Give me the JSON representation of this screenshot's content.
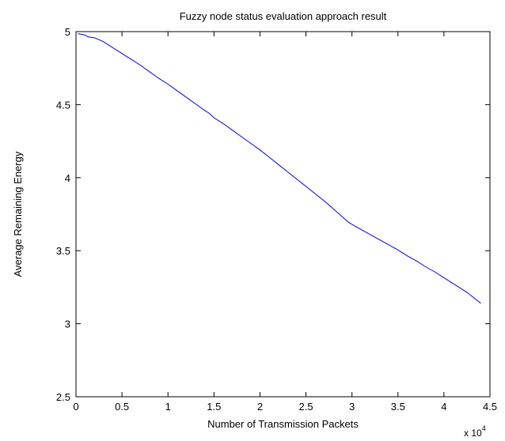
{
  "chart_data": {
    "type": "line",
    "title": "Fuzzy node status evaluation approach result",
    "xlabel": "Number of Transmission Packets",
    "ylabel": "Average Remaining Energy",
    "x_multiplier": {
      "base": "x 10",
      "exponent": "4"
    },
    "xlim": [
      0,
      4.5
    ],
    "ylim": [
      2.5,
      5
    ],
    "xticks": [
      0,
      0.5,
      1,
      1.5,
      2,
      2.5,
      3,
      3.5,
      4,
      4.5
    ],
    "xtick_labels": [
      "0",
      "0.5",
      "1",
      "1.5",
      "2",
      "2.5",
      "3",
      "3.5",
      "4",
      "4.5"
    ],
    "yticks": [
      2.5,
      3,
      3.5,
      4,
      4.5,
      5
    ],
    "ytick_labels": [
      "2.5",
      "3",
      "3.5",
      "4",
      "4.5",
      "5"
    ],
    "grid": false,
    "series": [
      {
        "color": "#0000ff",
        "x": [
          0.02,
          0.05,
          0.08,
          0.1,
          0.13,
          0.17,
          0.2,
          0.25,
          0.3,
          0.4,
          0.5,
          0.6,
          0.7,
          0.8,
          0.9,
          1.0,
          1.1,
          1.2,
          1.3,
          1.4,
          1.45,
          1.5,
          1.6,
          1.7,
          1.8,
          1.9,
          2.0,
          2.1,
          2.2,
          2.3,
          2.4,
          2.5,
          2.6,
          2.7,
          2.8,
          2.9,
          2.95,
          3.0,
          3.1,
          3.2,
          3.3,
          3.4,
          3.5,
          3.6,
          3.7,
          3.8,
          3.9,
          4.0,
          4.1,
          4.2,
          4.25,
          4.3,
          4.4
        ],
        "y": [
          4.985,
          4.982,
          4.98,
          4.975,
          4.965,
          4.96,
          4.958,
          4.945,
          4.93,
          4.89,
          4.85,
          4.81,
          4.77,
          4.725,
          4.68,
          4.64,
          4.595,
          4.55,
          4.505,
          4.46,
          4.44,
          4.41,
          4.37,
          4.325,
          4.28,
          4.235,
          4.19,
          4.14,
          4.09,
          4.04,
          3.99,
          3.94,
          3.89,
          3.84,
          3.785,
          3.73,
          3.7,
          3.68,
          3.645,
          3.61,
          3.575,
          3.54,
          3.505,
          3.465,
          3.43,
          3.39,
          3.355,
          3.315,
          3.275,
          3.235,
          3.215,
          3.19,
          3.14
        ]
      }
    ]
  }
}
